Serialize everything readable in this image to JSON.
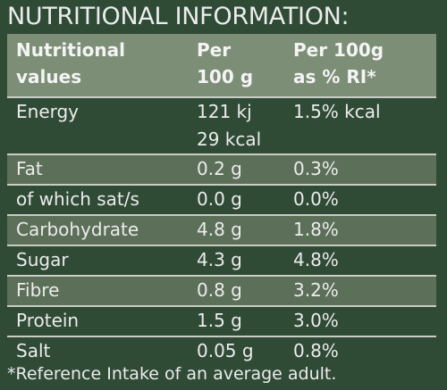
{
  "title": "NUTRITIONAL INFORMATION:",
  "header": {
    "col1": [
      "Nutritional",
      "values"
    ],
    "col2": [
      "Per",
      "100 g"
    ],
    "col3": [
      "Per 100g",
      "as % RI*"
    ]
  },
  "rows": [
    {
      "name": "Energy",
      "per100": [
        "121 kj",
        "29 kcal"
      ],
      "ri": "1.5% kcal"
    },
    {
      "name": "Fat",
      "per100": [
        "0.2 g"
      ],
      "ri": "0.3%"
    },
    {
      "name": "of which sat/s",
      "per100": [
        "0.0 g"
      ],
      "ri": "0.0%"
    },
    {
      "name": "Carbohydrate",
      "per100": [
        "4.8 g"
      ],
      "ri": "1.8%"
    },
    {
      "name": "Sugar",
      "per100": [
        "4.3 g"
      ],
      "ri": "4.8%"
    },
    {
      "name": "Fibre",
      "per100": [
        "0.8 g"
      ],
      "ri": "3.2%"
    },
    {
      "name": "Protein",
      "per100": [
        "1.5 g"
      ],
      "ri": "3.0%"
    },
    {
      "name": "Salt",
      "per100": [
        "0.05 g"
      ],
      "ri": "0.8%"
    }
  ],
  "footnote": "*Reference Intake of an average adult.",
  "colors": {
    "background": "#2f4a35",
    "header": "#7d8e77",
    "stripe": "#5c6f58",
    "text": "#ececec"
  }
}
